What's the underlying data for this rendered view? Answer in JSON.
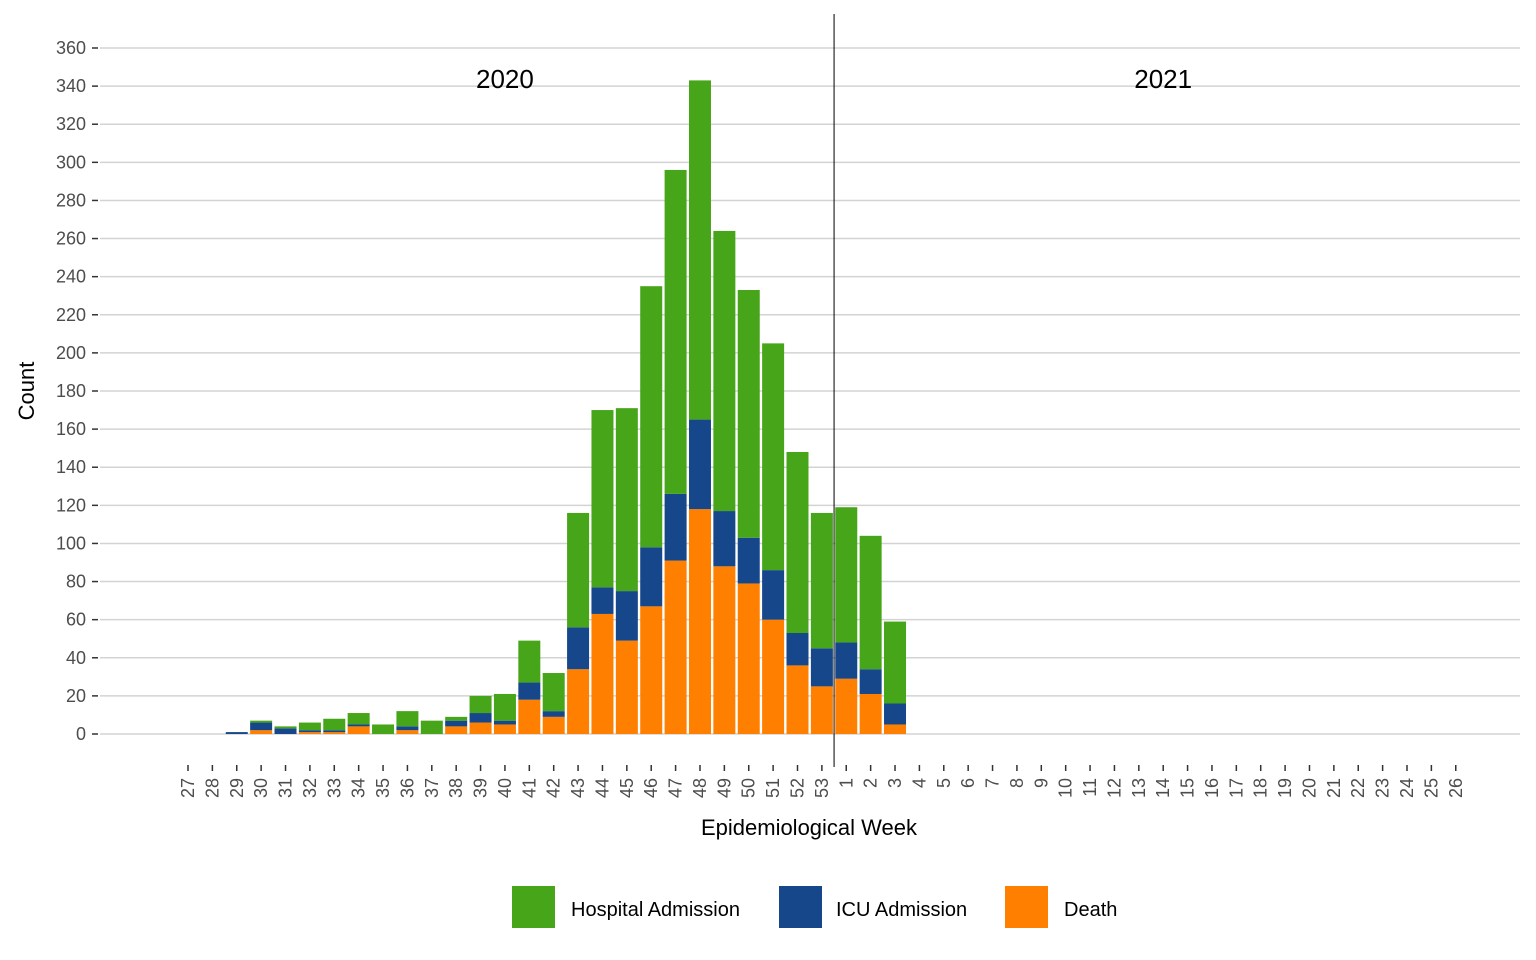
{
  "chart_data": {
    "type": "bar",
    "stacked": true,
    "title": "",
    "xlabel": "Epidemiological Week",
    "ylabel": "Count",
    "ylim": [
      0,
      360
    ],
    "yticks": [
      0,
      20,
      40,
      60,
      80,
      100,
      120,
      140,
      160,
      180,
      200,
      220,
      240,
      260,
      280,
      300,
      320,
      340,
      360
    ],
    "grid": "horizontal",
    "year_labels": [
      {
        "text": "2020",
        "anchor_week": "40"
      },
      {
        "text": "2021",
        "anchor_week": "14"
      }
    ],
    "divider_after_week": "53",
    "legend_position": "bottom",
    "categories": [
      "27",
      "28",
      "29",
      "30",
      "31",
      "32",
      "33",
      "34",
      "35",
      "36",
      "37",
      "38",
      "39",
      "40",
      "41",
      "42",
      "43",
      "44",
      "45",
      "46",
      "47",
      "48",
      "49",
      "50",
      "51",
      "52",
      "53",
      "1",
      "2",
      "3",
      "4",
      "5",
      "6",
      "7",
      "8",
      "9",
      "10",
      "11",
      "12",
      "13",
      "14",
      "15",
      "16",
      "17",
      "18",
      "19",
      "20",
      "21",
      "22",
      "23",
      "24",
      "25",
      "26"
    ],
    "series": [
      {
        "name": "Death",
        "color": "#ff7f00",
        "values": [
          0,
          0,
          0,
          2,
          0,
          1,
          1,
          4,
          0,
          2,
          0,
          4,
          6,
          5,
          18,
          9,
          34,
          63,
          49,
          67,
          91,
          118,
          88,
          79,
          60,
          36,
          25,
          29,
          21,
          5,
          0,
          0,
          0,
          0,
          0,
          0,
          0,
          0,
          0,
          0,
          0,
          0,
          0,
          0,
          0,
          0,
          0,
          0,
          0,
          0,
          0,
          0,
          0
        ]
      },
      {
        "name": "ICU Admission",
        "color": "#15478a",
        "values": [
          0,
          0,
          1,
          4,
          3,
          1,
          1,
          1,
          0,
          2,
          0,
          3,
          5,
          2,
          9,
          3,
          22,
          14,
          26,
          31,
          35,
          47,
          29,
          24,
          26,
          17,
          20,
          19,
          13,
          11,
          0,
          0,
          0,
          0,
          0,
          0,
          0,
          0,
          0,
          0,
          0,
          0,
          0,
          0,
          0,
          0,
          0,
          0,
          0,
          0,
          0,
          0,
          0
        ]
      },
      {
        "name": "Hospital Admission",
        "color": "#47a519",
        "values": [
          0,
          0,
          0,
          1,
          1,
          4,
          6,
          6,
          5,
          8,
          7,
          2,
          9,
          14,
          22,
          20,
          60,
          93,
          96,
          137,
          170,
          178,
          147,
          130,
          119,
          95,
          71,
          71,
          70,
          43,
          0,
          0,
          0,
          0,
          0,
          0,
          0,
          0,
          0,
          0,
          0,
          0,
          0,
          0,
          0,
          0,
          0,
          0,
          0,
          0,
          0,
          0,
          0
        ]
      }
    ],
    "legend": [
      {
        "label": "Hospital Admission",
        "color": "#47a519"
      },
      {
        "label": "ICU Admission",
        "color": "#15478a"
      },
      {
        "label": "Death",
        "color": "#ff7f00"
      }
    ]
  }
}
